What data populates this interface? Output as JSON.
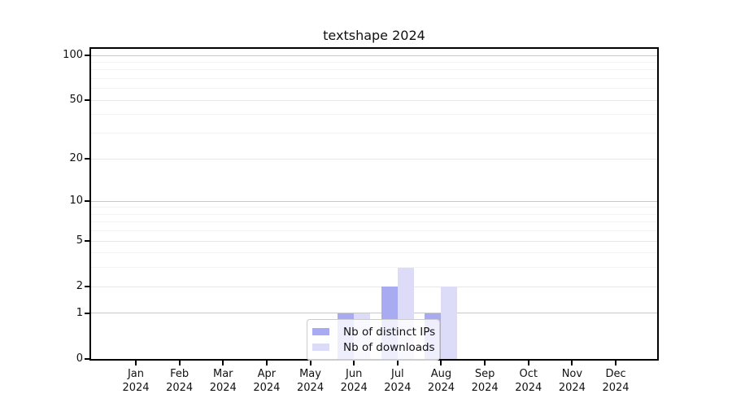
{
  "chart_data": {
    "type": "bar",
    "title": "textshape 2024",
    "x_months": [
      "Jan",
      "Feb",
      "Mar",
      "Apr",
      "May",
      "Jun",
      "Jul",
      "Aug",
      "Sep",
      "Oct",
      "Nov",
      "Dec"
    ],
    "x_year": "2024",
    "series": [
      {
        "name": "Nb of distinct IPs",
        "color": "#a9abf2",
        "values": [
          0,
          0,
          0,
          0,
          0,
          1,
          2,
          1,
          0,
          0,
          0,
          0
        ]
      },
      {
        "name": "Nb of downloads",
        "color": "#dcdcf8",
        "values": [
          0,
          0,
          0,
          0,
          0,
          1,
          3,
          2,
          0,
          0,
          0,
          0
        ]
      }
    ],
    "y_scale": "log1p",
    "y_axis_tick_labels": [
      0,
      1,
      2,
      5,
      10,
      20,
      50,
      100
    ],
    "y_minor_gridlines": [
      3,
      4,
      6,
      7,
      8,
      9,
      30,
      40,
      60,
      70,
      80,
      90
    ],
    "y_decade_gridlines": [
      1,
      10,
      100
    ],
    "xlabel": "",
    "ylabel": "",
    "grid": true,
    "legend_position": "bottom-center",
    "colors": {
      "frame": "#000000",
      "grid_decade": "#c8c8c8",
      "grid_major": "#e7e7e7",
      "grid_minor": "#f3f3f3",
      "legend_border": "#cccccc"
    }
  }
}
